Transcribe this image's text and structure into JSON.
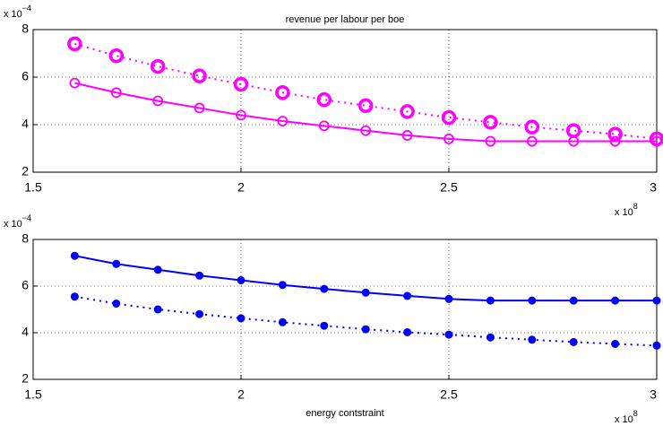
{
  "chart_data": [
    {
      "type": "line",
      "title": "revenue per labour per boe",
      "x": [
        1.6,
        1.7,
        1.8,
        1.9,
        2.0,
        2.1,
        2.2,
        2.3,
        2.4,
        2.5,
        2.6,
        2.7,
        2.8,
        2.9,
        3.0
      ],
      "series": [
        {
          "color": "#ff00ff",
          "line": "dotted",
          "marker": "circle-large",
          "values": [
            7.4,
            6.9,
            6.45,
            6.05,
            5.7,
            5.35,
            5.05,
            4.8,
            4.55,
            4.3,
            4.1,
            3.9,
            3.75,
            3.6,
            3.4
          ]
        },
        {
          "color": "#ff00ff",
          "line": "solid",
          "marker": "circle",
          "values": [
            5.75,
            5.35,
            5.0,
            4.7,
            4.4,
            4.15,
            3.95,
            3.75,
            3.55,
            3.4,
            3.3,
            3.3,
            3.3,
            3.3,
            3.3
          ]
        }
      ],
      "xlim": [
        1.5,
        3
      ],
      "xticks": [
        1.5,
        2,
        2.5,
        3
      ],
      "ylim": [
        2,
        8
      ],
      "yticks": [
        2,
        4,
        6,
        8
      ],
      "grid": true,
      "y_multiplier": {
        "base": "x 10",
        "exponent": "−4"
      },
      "x_multiplier": {
        "base": "x 10",
        "exponent": "8"
      }
    },
    {
      "type": "line",
      "xlabel": "energy contstraint",
      "x": [
        1.6,
        1.7,
        1.8,
        1.9,
        2.0,
        2.1,
        2.2,
        2.3,
        2.4,
        2.5,
        2.6,
        2.7,
        2.8,
        2.9,
        3.0
      ],
      "series": [
        {
          "color": "#0000ff",
          "line": "solid",
          "marker": "dot",
          "values": [
            7.3,
            6.95,
            6.7,
            6.45,
            6.25,
            6.05,
            5.88,
            5.72,
            5.58,
            5.45,
            5.38,
            5.38,
            5.38,
            5.38,
            5.38
          ]
        },
        {
          "color": "#0000ff",
          "line": "dotted",
          "marker": "dot",
          "values": [
            5.55,
            5.25,
            5.0,
            4.8,
            4.62,
            4.45,
            4.3,
            4.15,
            4.02,
            3.92,
            3.8,
            3.7,
            3.6,
            3.52,
            3.45
          ]
        }
      ],
      "xlim": [
        1.5,
        3
      ],
      "xticks": [
        1.5,
        2,
        2.5,
        3
      ],
      "ylim": [
        2,
        8
      ],
      "yticks": [
        2,
        4,
        6,
        8
      ],
      "grid": true,
      "y_multiplier": {
        "base": "x 10",
        "exponent": "−4"
      },
      "x_multiplier": {
        "base": "x 10",
        "exponent": "8"
      }
    }
  ]
}
